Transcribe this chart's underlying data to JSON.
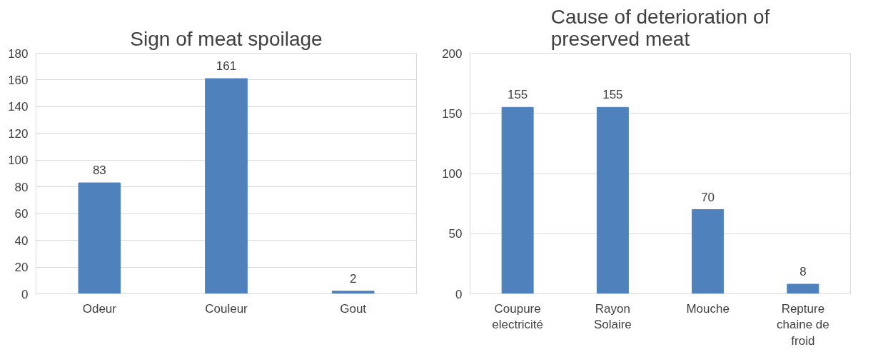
{
  "chart_data": [
    {
      "type": "bar",
      "title": "Sign of meat spoilage",
      "categories": [
        "Odeur",
        "Couleur",
        "Gout"
      ],
      "values": [
        83,
        161,
        2
      ],
      "color": "#4f81bd",
      "ylim": [
        0,
        180
      ],
      "yticks": [
        0,
        20,
        40,
        60,
        80,
        100,
        120,
        140,
        160,
        180
      ],
      "grid": "y",
      "data_labels": true
    },
    {
      "type": "bar",
      "title": "Cause of deterioration of preserved meat",
      "categories": [
        "Coupure electricité",
        "Rayon Solaire",
        "Mouche",
        "Repture chaine de froid"
      ],
      "values": [
        155,
        155,
        70,
        8
      ],
      "color": "#4f81bd",
      "ylim": [
        0,
        200
      ],
      "yticks": [
        0,
        50,
        100,
        150,
        200
      ],
      "grid": "y",
      "data_labels": true
    }
  ]
}
